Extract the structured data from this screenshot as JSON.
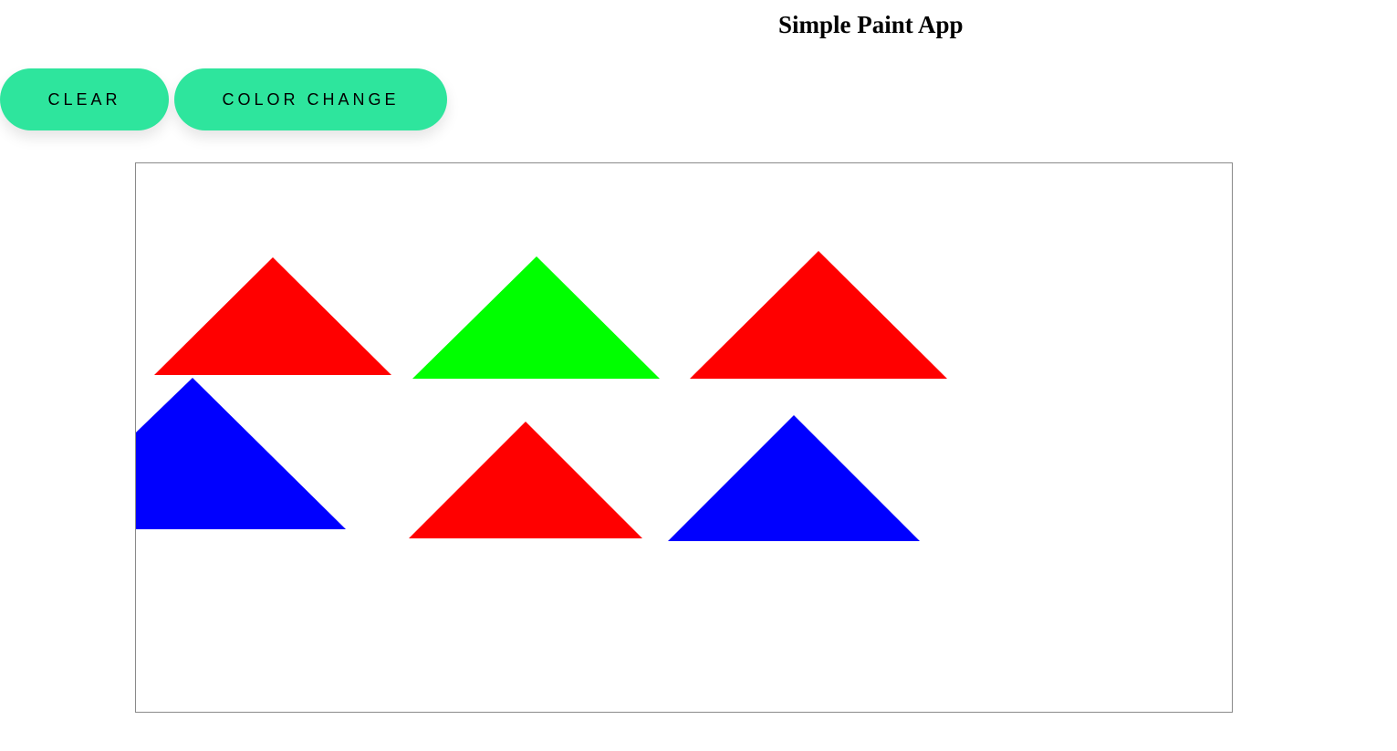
{
  "app": {
    "title": "Simple Paint App"
  },
  "toolbar": {
    "clear_label": "CLEAR",
    "color_change_label": "COLOR CHANGE",
    "button_color": "#2ee59d"
  },
  "canvas": {
    "shape_type": "triangle",
    "shapes": [
      {
        "name": "triangle-red-1",
        "color": "#ff0000"
      },
      {
        "name": "triangle-green-1",
        "color": "#00ff00"
      },
      {
        "name": "triangle-red-2",
        "color": "#ff0000"
      },
      {
        "name": "triangle-blue-1",
        "color": "#0000ff"
      },
      {
        "name": "triangle-red-3",
        "color": "#ff0000"
      },
      {
        "name": "triangle-blue-2",
        "color": "#0000ff"
      }
    ]
  }
}
